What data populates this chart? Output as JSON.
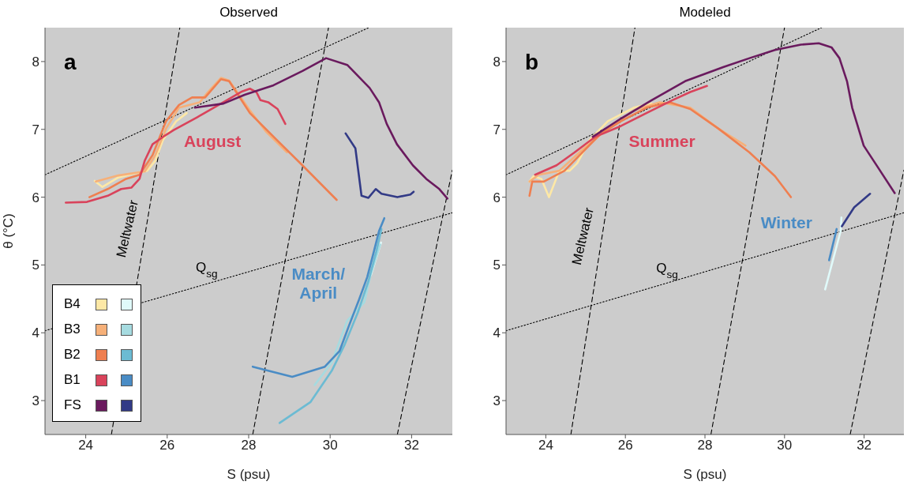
{
  "chart_data": [
    {
      "type": "line",
      "title": "Observed",
      "xlabel": "S (psu)",
      "ylabel": "θ (°C)",
      "xlim": [
        23,
        33
      ],
      "ylim": [
        2.5,
        8.5
      ],
      "xticks": [
        24,
        26,
        28,
        30,
        32
      ],
      "yticks": [
        3,
        4,
        5,
        6,
        7,
        8
      ],
      "legend": "bottom left",
      "annotations": [
        "a",
        "August",
        "March/\nApril",
        "Meltwater",
        "Q$_{sg}$"
      ],
      "series": [
        {
          "type": "line",
          "color": "#000000",
          "line_style": "dotted",
          "x": [
            23,
            30.95
          ],
          "values": [
            6.33,
            8.5
          ]
        },
        {
          "type": "line",
          "color": "#000000",
          "line_style": "dotted",
          "x": [
            23,
            33
          ],
          "values": [
            4.03,
            5.77
          ]
        },
        {
          "type": "line",
          "color": "#000000",
          "line_style": "dashed",
          "x": [
            24.63,
            26.31
          ],
          "values": [
            2.5,
            8.5
          ]
        },
        {
          "type": "line",
          "color": "#000000",
          "line_style": "dashed",
          "x": [
            28.1,
            29.96
          ],
          "values": [
            2.5,
            8.5
          ]
        },
        {
          "type": "line",
          "color": "#000000",
          "line_style": "dashed",
          "x": [
            31.65,
            33
          ],
          "values": [
            2.5,
            6.4
          ]
        },
        {
          "name": "B4",
          "color": "#fde8a6",
          "x": [
            24.22,
            24.41,
            24.8,
            25.12,
            25.51,
            25.71,
            25.9,
            26.09,
            26.22,
            26.48
          ],
          "values": [
            6.24,
            6.15,
            6.29,
            6.34,
            6.39,
            6.54,
            6.85,
            7.01,
            7.12,
            7.24
          ]
        },
        {
          "color": "#e0fafa",
          "x": [
            31.0,
            31.25
          ],
          "values": [
            4.85,
            5.33
          ]
        },
        {
          "name": "B3",
          "color": "#f6b079",
          "x": [
            24.25,
            24.8,
            25.45,
            25.71,
            25.97,
            26.29,
            26.8,
            27.0,
            27.32,
            27.52,
            28.03,
            28.42,
            28.94
          ],
          "values": [
            6.23,
            6.32,
            6.38,
            6.62,
            7.01,
            7.32,
            7.4,
            7.55,
            7.76,
            7.72,
            7.28,
            6.97,
            6.66
          ]
        },
        {
          "color": "#a6dbe0",
          "x": [
            29.62,
            30.04,
            30.42,
            30.84,
            31.0,
            31.23
          ],
          "values": [
            3.23,
            3.56,
            4.18,
            4.45,
            4.87,
            5.3
          ]
        },
        {
          "name": "B2",
          "color": "#ef7f50",
          "x": [
            24.09,
            24.54,
            24.99,
            25.32,
            25.64,
            25.97,
            26.29,
            26.61,
            26.93,
            27.32,
            27.52,
            28.03,
            28.68,
            29.32,
            30.16
          ],
          "values": [
            6.0,
            6.12,
            6.27,
            6.33,
            6.62,
            7.12,
            7.36,
            7.47,
            7.47,
            7.74,
            7.71,
            7.24,
            6.85,
            6.47,
            5.96
          ]
        },
        {
          "color": "#6cbbd3",
          "x": [
            28.76,
            29.52,
            30.04,
            30.36,
            30.68,
            30.94,
            31.13,
            31.26
          ],
          "values": [
            2.67,
            2.98,
            3.44,
            3.83,
            4.3,
            4.76,
            5.19,
            5.53
          ]
        },
        {
          "name": "B1",
          "color": "#d9435b",
          "x": [
            23.51,
            24.03,
            24.54,
            24.87,
            25.12,
            25.32,
            25.45,
            25.64,
            25.9,
            26.16,
            26.74,
            27.38,
            27.84,
            28.03,
            28.19,
            28.29,
            28.48,
            28.71,
            28.9
          ],
          "values": [
            5.92,
            5.93,
            6.02,
            6.12,
            6.14,
            6.27,
            6.54,
            6.78,
            6.89,
            6.99,
            7.18,
            7.4,
            7.56,
            7.6,
            7.55,
            7.43,
            7.4,
            7.3,
            7.08
          ]
        },
        {
          "color": "#4a8cc5",
          "x": [
            28.1,
            29.07,
            29.87,
            30.23,
            30.46,
            30.71,
            30.91,
            31.07,
            31.2,
            31.33
          ],
          "values": [
            3.5,
            3.35,
            3.5,
            3.73,
            4.1,
            4.49,
            4.82,
            5.19,
            5.5,
            5.69
          ]
        },
        {
          "name": "FS",
          "color": "#6a1a5e",
          "x": [
            26.68,
            27.38,
            27.9,
            28.61,
            29.32,
            29.9,
            30.42,
            30.97,
            31.2,
            31.39,
            31.64,
            32.03,
            32.36,
            32.68,
            32.88
          ],
          "values": [
            7.32,
            7.38,
            7.51,
            7.65,
            7.86,
            8.05,
            7.95,
            7.61,
            7.4,
            7.08,
            6.78,
            6.47,
            6.27,
            6.12,
            5.98
          ]
        },
        {
          "color": "#323a86",
          "x": [
            30.38,
            30.62,
            30.77,
            30.94,
            31.12,
            31.26,
            31.65,
            31.97,
            32.05
          ],
          "values": [
            6.94,
            6.72,
            6.02,
            5.99,
            6.12,
            6.05,
            6.0,
            6.04,
            6.08
          ]
        }
      ]
    },
    {
      "type": "line",
      "title": "Modeled",
      "xlabel": "S (psu)",
      "xlim": [
        23,
        33
      ],
      "ylim": [
        2.5,
        8.5
      ],
      "xticks": [
        24,
        26,
        28,
        30,
        32
      ],
      "yticks": [
        3,
        4,
        5,
        6,
        7,
        8
      ],
      "annotations": [
        "b",
        "Summer",
        "Winter",
        "Meltwater",
        "Q$_{sg}$"
      ],
      "series": [
        {
          "type": "line",
          "color": "#000000",
          "line_style": "dotted",
          "x": [
            23,
            30.93
          ],
          "values": [
            6.33,
            8.5
          ]
        },
        {
          "type": "line",
          "color": "#000000",
          "line_style": "dotted",
          "x": [
            23,
            33
          ],
          "values": [
            4.03,
            5.77
          ]
        },
        {
          "type": "line",
          "color": "#000000",
          "line_style": "dashed",
          "x": [
            24.63,
            26.24
          ],
          "values": [
            2.5,
            8.5
          ]
        },
        {
          "type": "line",
          "color": "#000000",
          "line_style": "dashed",
          "x": [
            28.15,
            30.0
          ],
          "values": [
            2.5,
            8.5
          ]
        },
        {
          "type": "line",
          "color": "#000000",
          "line_style": "dashed",
          "x": [
            31.65,
            33
          ],
          "values": [
            2.5,
            6.4
          ]
        },
        {
          "color": "#fde8a6",
          "x": [
            23.59,
            23.69,
            23.89,
            24.08,
            24.34,
            24.6,
            24.79,
            25.11,
            25.56,
            26.21,
            26.66
          ],
          "values": [
            6.23,
            6.31,
            6.27,
            6.0,
            6.39,
            6.39,
            6.5,
            6.85,
            7.12,
            7.32,
            7.38
          ]
        },
        {
          "color": "#e0fafa",
          "x": [
            31.02,
            31.41,
            31.43
          ],
          "values": [
            4.64,
            5.5,
            5.7
          ]
        },
        {
          "color": "#f6b079",
          "x": [
            23.59,
            23.82,
            24.34,
            24.92,
            25.56,
            26.21,
            26.86,
            27.63,
            28.34,
            29.02
          ],
          "values": [
            6.23,
            6.33,
            6.39,
            6.7,
            7.01,
            7.28,
            7.4,
            7.32,
            7.01,
            6.76
          ]
        },
        {
          "color": "#ef7f50",
          "x": [
            23.59,
            23.66,
            23.95,
            24.47,
            24.92,
            25.37,
            25.89,
            26.53,
            27.12,
            27.63,
            28.34,
            29.12,
            29.76,
            30.16
          ],
          "values": [
            6.02,
            6.23,
            6.23,
            6.39,
            6.66,
            6.93,
            7.12,
            7.32,
            7.4,
            7.3,
            7.01,
            6.66,
            6.31,
            6.0
          ]
        },
        {
          "color": "#d9435b",
          "x": [
            23.73,
            24.27,
            24.72,
            25.24,
            25.89,
            26.53,
            27.18,
            27.63,
            28.05
          ],
          "values": [
            6.33,
            6.47,
            6.66,
            6.89,
            7.05,
            7.24,
            7.43,
            7.55,
            7.64
          ]
        },
        {
          "color": "#4a8cc5",
          "x": [
            31.12,
            31.31
          ],
          "values": [
            5.07,
            5.53
          ]
        },
        {
          "color": "#6a1a5e",
          "x": [
            25.18,
            25.89,
            26.66,
            27.5,
            28.47,
            29.12,
            29.76,
            30.41,
            30.86,
            31.18,
            31.38,
            31.57,
            31.7,
            31.99,
            32.38,
            32.77
          ],
          "values": [
            6.89,
            7.16,
            7.43,
            7.71,
            7.92,
            8.05,
            8.17,
            8.25,
            8.27,
            8.21,
            8.05,
            7.71,
            7.32,
            6.76,
            6.41,
            6.06
          ]
        },
        {
          "color": "#323a86",
          "x": [
            31.44,
            31.75,
            32.15
          ],
          "values": [
            5.57,
            5.85,
            6.05
          ]
        }
      ]
    }
  ]
}
